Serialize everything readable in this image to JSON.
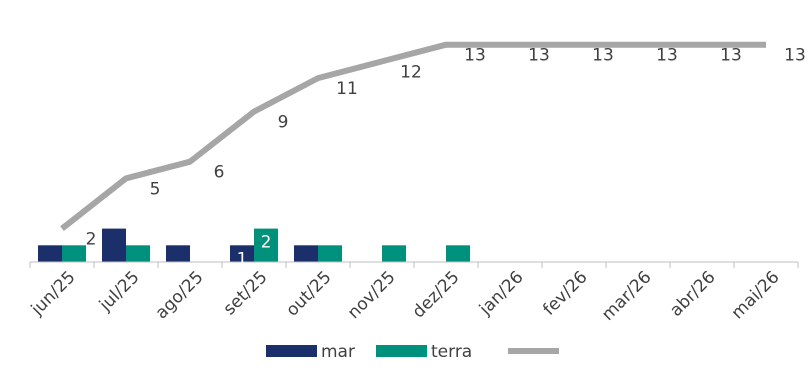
{
  "chart_data": {
    "type": "bar+line",
    "categories": [
      "jun/25",
      "jul/25",
      "ago/25",
      "set/25",
      "out/25",
      "nov/25",
      "dez/25",
      "jan/26",
      "fev/26",
      "mar/26",
      "abr/26",
      "mai/26"
    ],
    "series": [
      {
        "name": "mar",
        "type": "bar",
        "color": "#1b2f6b",
        "values": [
          1,
          2,
          1,
          1,
          1,
          0,
          0,
          0,
          0,
          0,
          0,
          0
        ]
      },
      {
        "name": "terra",
        "type": "bar",
        "color": "#00917c",
        "values": [
          1,
          1,
          0,
          2,
          1,
          1,
          1,
          0,
          0,
          0,
          0,
          0
        ]
      },
      {
        "name": "",
        "type": "line",
        "color": "#a6a6a6",
        "values": [
          2,
          5,
          6,
          9,
          11,
          12,
          13,
          13,
          13,
          13,
          13,
          13
        ]
      }
    ],
    "line_labels": [
      "2",
      "5",
      "6",
      "9",
      "11",
      "12",
      "13",
      "13",
      "13",
      "13",
      "13",
      "13"
    ],
    "bar_labels": [
      {
        "category": "set/25",
        "series": "mar",
        "text": "1"
      },
      {
        "category": "set/25",
        "series": "terra",
        "text": "2"
      }
    ],
    "ylim": [
      0,
      14
    ],
    "grid": false,
    "legend": "bottom"
  }
}
